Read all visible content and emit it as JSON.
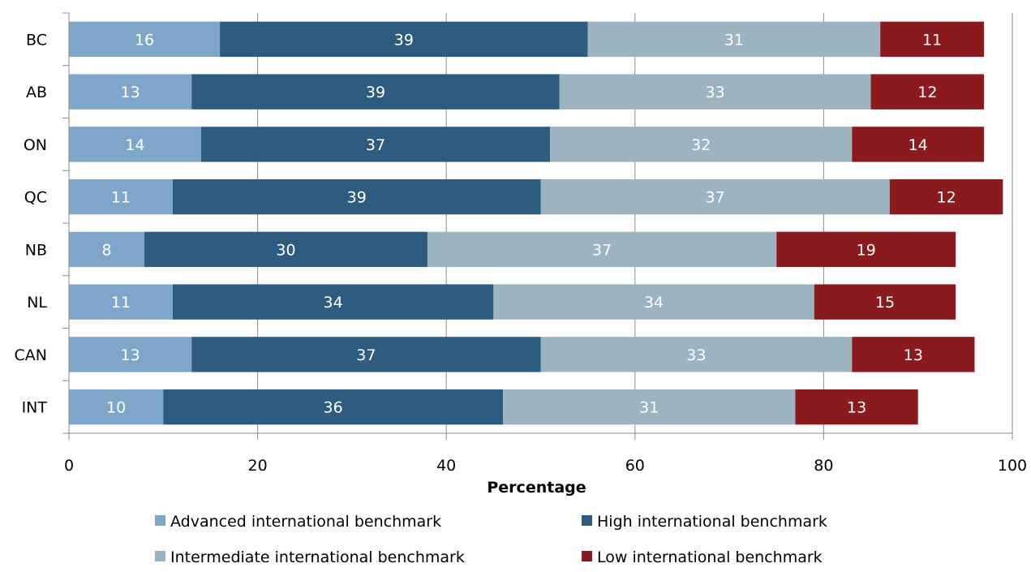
{
  "chart_data": {
    "type": "bar",
    "orientation": "horizontal",
    "stacked": true,
    "categories": [
      "BC",
      "AB",
      "ON",
      "QC",
      "NB",
      "NL",
      "CAN",
      "INT"
    ],
    "series": [
      {
        "name": "Advanced international benchmark",
        "color": "#7ea6c8",
        "values": [
          16,
          13,
          14,
          11,
          8,
          11,
          13,
          10
        ]
      },
      {
        "name": "High international benchmark",
        "color": "#2e5c80",
        "values": [
          39,
          39,
          37,
          39,
          30,
          34,
          37,
          36
        ]
      },
      {
        "name": "Intermediate international benchmark",
        "color": "#9cb3c2",
        "values": [
          31,
          33,
          32,
          37,
          37,
          34,
          33,
          31
        ]
      },
      {
        "name": "Low international benchmark",
        "color": "#8b1a1e",
        "values": [
          11,
          12,
          14,
          12,
          19,
          15,
          13,
          13
        ]
      }
    ],
    "xlabel": "Percentage",
    "ylabel": "",
    "xlim": [
      0,
      100
    ],
    "xticks": [
      "0",
      "20",
      "40",
      "60",
      "80",
      "100"
    ],
    "grid": "vertical",
    "legend": "bottom"
  }
}
